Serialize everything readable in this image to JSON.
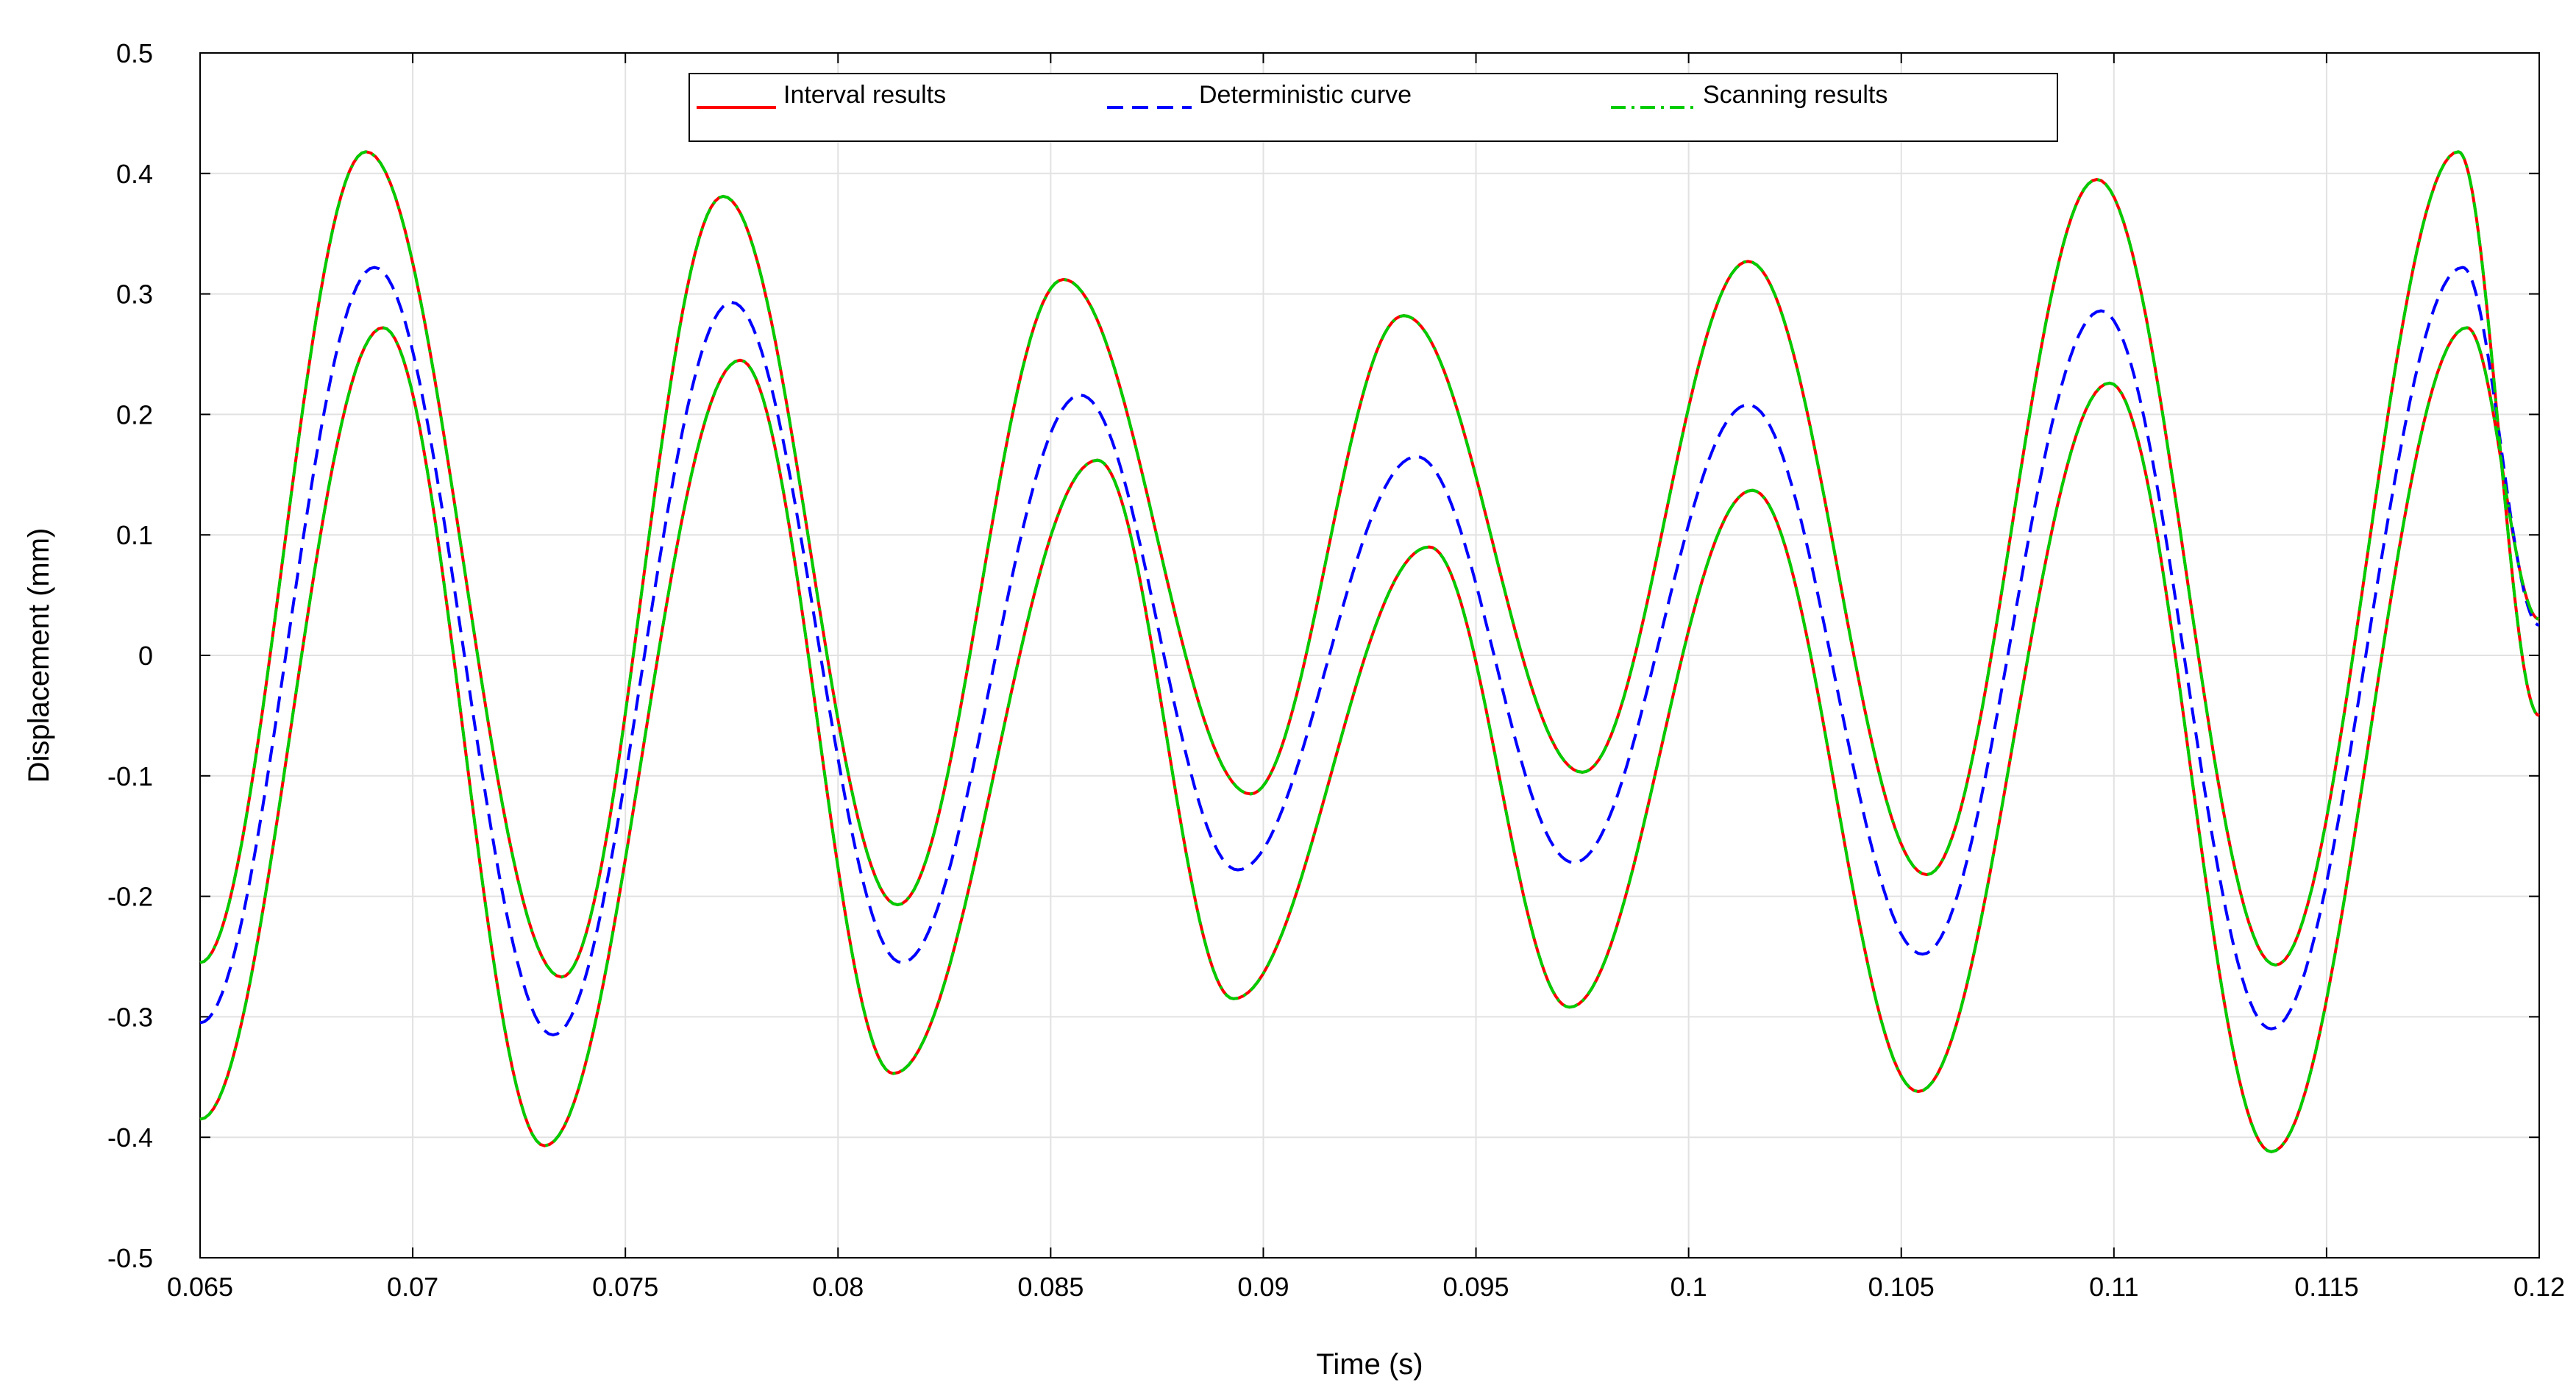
{
  "chart_data": {
    "type": "line",
    "title": "",
    "xlabel": "Time (s)",
    "ylabel": "Displacement (mm)",
    "xlim": [
      0.065,
      0.12
    ],
    "ylim": [
      -0.5,
      0.5
    ],
    "xticks": [
      0.065,
      0.07,
      0.075,
      0.08,
      0.085,
      0.09,
      0.095,
      0.1,
      0.105,
      0.11,
      0.115,
      0.12
    ],
    "xtick_labels": [
      "0.065",
      "0.07",
      "0.075",
      "0.08",
      "0.085",
      "0.09",
      "0.095",
      "0.1",
      "0.105",
      "0.11",
      "0.115",
      "0.12"
    ],
    "yticks": [
      0.5,
      0.4,
      0.3,
      0.2,
      0.1,
      0,
      -0.1,
      -0.2,
      -0.3,
      -0.4,
      -0.5
    ],
    "ytick_labels": [
      "0.5",
      "0.4",
      "0.3",
      "0.2",
      "0.1",
      "0",
      "-0.1",
      "-0.2",
      "-0.3",
      "-0.4",
      "-0.5"
    ],
    "grid": true,
    "legend_position": "top-center",
    "series": [
      {
        "name": "Interval results",
        "color": "#ff0000",
        "style": "solid",
        "curves": [
          {
            "part": "upper",
            "x": [
              0.065,
              0.0689,
              0.0735,
              0.0773,
              0.0814,
              0.0853,
              0.0897,
              0.0933,
              0.0975,
              0.1014,
              0.1056,
              0.1096,
              0.1138,
              0.1181,
              0.12
            ],
            "y": [
              -0.255,
              0.418,
              -0.267,
              0.381,
              -0.207,
              0.312,
              -0.115,
              0.282,
              -0.097,
              0.327,
              -0.182,
              0.395,
              -0.257,
              0.418,
              -0.05
            ]
          },
          {
            "part": "lower",
            "x": [
              0.065,
              0.0693,
              0.0731,
              0.0777,
              0.0813,
              0.0861,
              0.0893,
              0.0939,
              0.0972,
              0.1015,
              0.1054,
              0.1099,
              0.1137,
              0.1183,
              0.12
            ],
            "y": [
              -0.385,
              0.272,
              -0.407,
              0.245,
              -0.347,
              0.162,
              -0.285,
              0.09,
              -0.292,
              0.137,
              -0.362,
              0.226,
              -0.412,
              0.272,
              0.03
            ]
          }
        ]
      },
      {
        "name": "Deterministic curve",
        "color": "#0000ff",
        "style": "dashed",
        "curves": [
          {
            "part": "deterministic",
            "x": [
              0.065,
              0.0691,
              0.0733,
              0.0775,
              0.0815,
              0.0857,
              0.0894,
              0.0936,
              0.0973,
              0.1014,
              0.1055,
              0.1097,
              0.1137,
              0.1182,
              0.12
            ],
            "y": [
              -0.305,
              0.322,
              -0.315,
              0.293,
              -0.255,
              0.216,
              -0.178,
              0.165,
              -0.172,
              0.208,
              -0.248,
              0.286,
              -0.31,
              0.322,
              0.025
            ]
          }
        ]
      },
      {
        "name": "Scanning results",
        "color": "#00cc00",
        "style": "dashdot",
        "same_as": "Interval results"
      }
    ]
  }
}
